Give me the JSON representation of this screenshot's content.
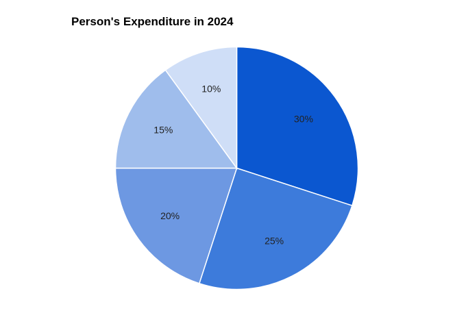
{
  "chart_data": {
    "type": "pie",
    "title": "Person's Expenditure in 2024",
    "slices": [
      {
        "value": 30,
        "label": "30%",
        "color": "#0b57d0"
      },
      {
        "value": 25,
        "label": "25%",
        "color": "#3d7bdb"
      },
      {
        "value": 20,
        "label": "20%",
        "color": "#6d98e2"
      },
      {
        "value": 15,
        "label": "15%",
        "color": "#9fbdec"
      },
      {
        "value": 10,
        "label": "10%",
        "color": "#cfdef7"
      }
    ],
    "legend": "none",
    "start_angle": "12 o'clock",
    "direction": "clockwise"
  }
}
